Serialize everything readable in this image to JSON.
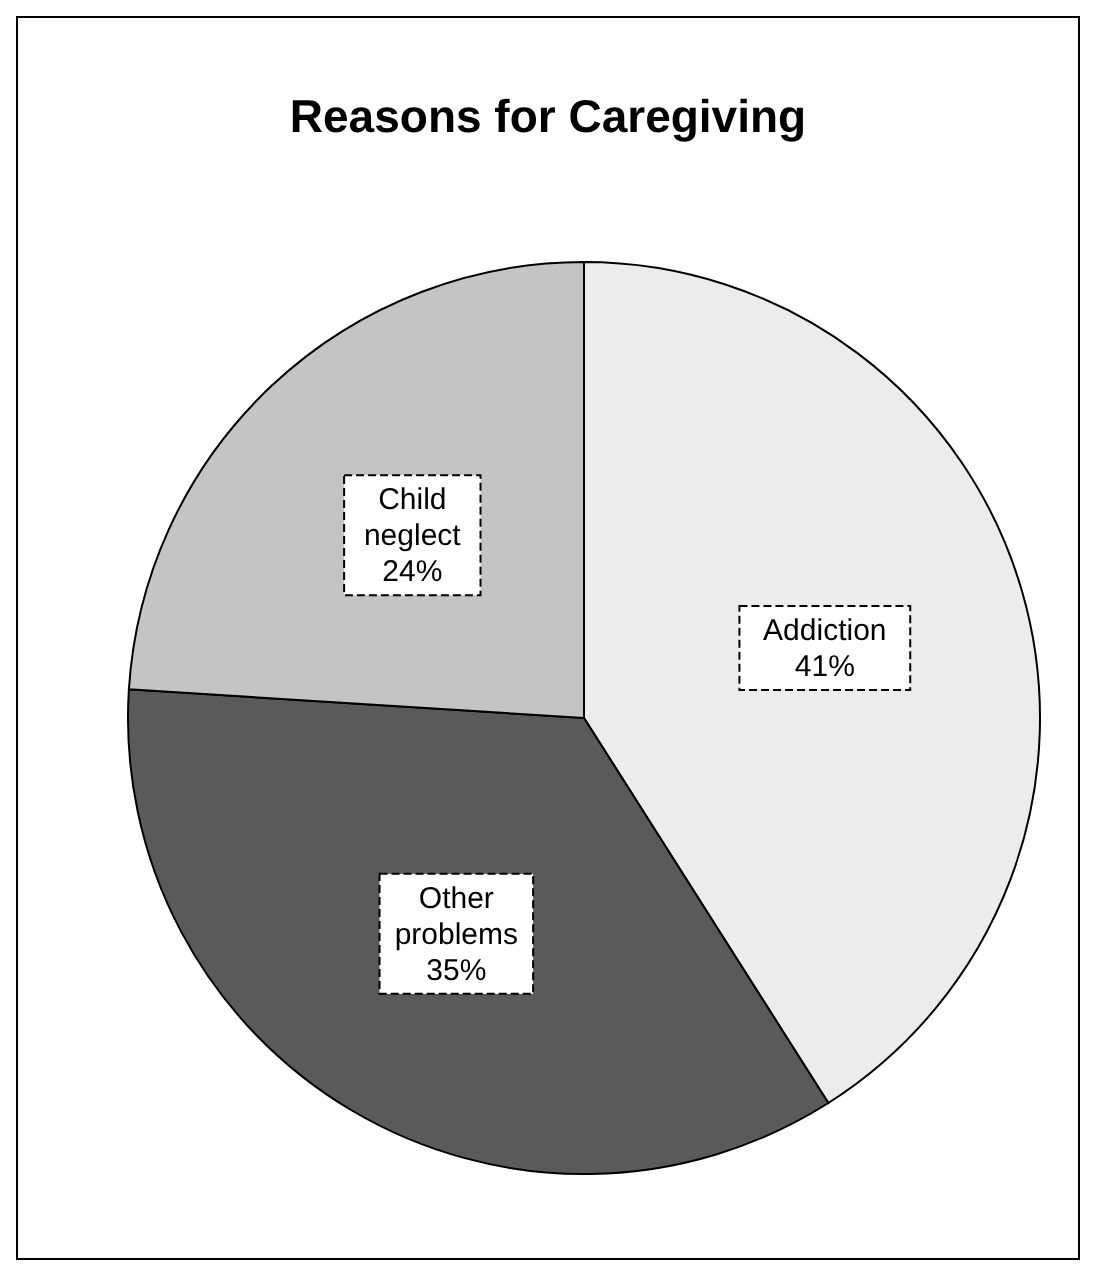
{
  "chart_data": {
    "type": "pie",
    "title": "Reasons for Caregiving",
    "categories": [
      "Addiction",
      "Other problems",
      "Child neglect"
    ],
    "values": [
      41,
      35,
      24
    ],
    "colors": [
      "#ececec",
      "#5a5a5a",
      "#c4c4c4"
    ],
    "value_labels": [
      "41%",
      "35%",
      "24%"
    ]
  }
}
